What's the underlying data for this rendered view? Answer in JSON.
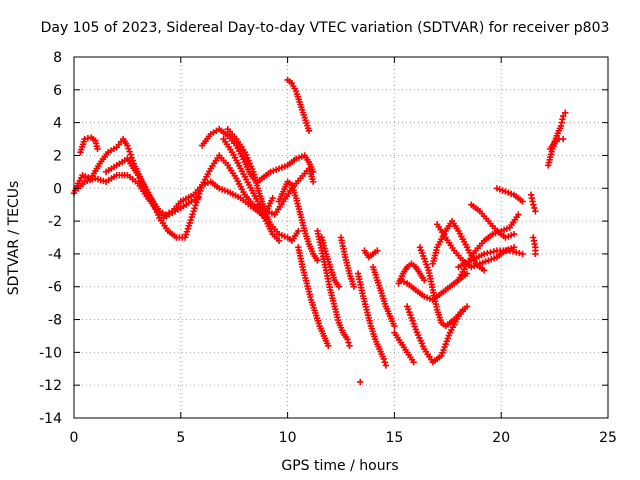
{
  "chart_data": {
    "type": "scatter",
    "title": "Day 105 of 2023, Sidereal Day-to-day VTEC variation (SDTVAR) for receiver p803",
    "xlabel": "GPS time / hours",
    "ylabel": "SDTVAR / TECUs",
    "xlim": [
      0,
      25
    ],
    "ylim": [
      -14,
      8
    ],
    "xticks": [
      0,
      5,
      10,
      15,
      20,
      25
    ],
    "yticks": [
      -14,
      -12,
      -10,
      -8,
      -6,
      -4,
      -2,
      0,
      2,
      4,
      6,
      8
    ],
    "grid": true,
    "marker": "+",
    "color": "#ff0000",
    "series": [
      {
        "points": [
          [
            0.0,
            -0.3
          ],
          [
            0.2,
            0.3
          ],
          [
            0.4,
            0.8
          ],
          [
            0.8,
            0.6
          ],
          [
            1.2,
            1.5
          ],
          [
            1.6,
            2.2
          ],
          [
            2.0,
            2.5
          ],
          [
            2.3,
            3.0
          ],
          [
            2.5,
            2.6
          ],
          [
            2.8,
            1.5
          ],
          [
            3.2,
            0.4
          ],
          [
            3.6,
            -0.6
          ],
          [
            4.0,
            -1.8
          ],
          [
            4.4,
            -2.6
          ],
          [
            4.8,
            -3.0
          ],
          [
            5.2,
            -3.0
          ],
          [
            5.6,
            -1.4
          ],
          [
            6.0,
            0.2
          ],
          [
            6.4,
            1.2
          ],
          [
            6.8,
            2.0
          ],
          [
            7.2,
            1.4
          ],
          [
            7.6,
            0.6
          ],
          [
            8.0,
            -0.4
          ],
          [
            8.5,
            -1.2
          ],
          [
            9.0,
            -1.4
          ],
          [
            9.3,
            -0.6
          ]
        ]
      },
      {
        "points": [
          [
            0.2,
            0.0
          ],
          [
            0.5,
            0.4
          ],
          [
            1.0,
            0.6
          ],
          [
            1.5,
            0.4
          ],
          [
            2.0,
            0.8
          ],
          [
            2.5,
            0.8
          ],
          [
            3.0,
            0.3
          ],
          [
            3.4,
            -0.5
          ],
          [
            3.8,
            -1.2
          ],
          [
            4.2,
            -1.8
          ],
          [
            4.6,
            -1.5
          ],
          [
            5.0,
            -1.2
          ],
          [
            5.5,
            -0.8
          ],
          [
            5.8,
            -0.6
          ]
        ]
      },
      {
        "points": [
          [
            0.3,
            2.2
          ],
          [
            0.5,
            3.0
          ],
          [
            0.8,
            3.1
          ],
          [
            1.0,
            2.9
          ],
          [
            1.1,
            2.4
          ]
        ]
      },
      {
        "points": [
          [
            1.5,
            1.0
          ],
          [
            2.0,
            1.4
          ],
          [
            2.5,
            1.8
          ],
          [
            3.0,
            0.8
          ],
          [
            3.5,
            -0.4
          ],
          [
            4.0,
            -1.4
          ],
          [
            4.3,
            -1.6
          ],
          [
            4.6,
            -1.4
          ],
          [
            5.0,
            -0.8
          ],
          [
            5.6,
            -0.4
          ],
          [
            6.0,
            0.2
          ],
          [
            6.4,
            0.4
          ],
          [
            6.8,
            0.0
          ],
          [
            7.2,
            -0.2
          ],
          [
            7.8,
            -0.6
          ],
          [
            8.4,
            -1.2
          ],
          [
            8.8,
            -1.6
          ],
          [
            9.0,
            -1.8
          ]
        ]
      },
      {
        "points": [
          [
            6.0,
            2.6
          ],
          [
            6.4,
            3.3
          ],
          [
            6.8,
            3.6
          ],
          [
            7.2,
            3.2
          ],
          [
            7.6,
            2.6
          ],
          [
            8.0,
            1.6
          ],
          [
            8.2,
            1.0
          ],
          [
            8.4,
            0.6
          ],
          [
            8.6,
            0.4
          ],
          [
            8.8,
            0.6
          ],
          [
            9.2,
            1.0
          ],
          [
            9.6,
            1.2
          ],
          [
            10.0,
            1.4
          ],
          [
            10.4,
            1.8
          ],
          [
            10.8,
            2.0
          ],
          [
            11.0,
            1.6
          ],
          [
            11.2,
            1.0
          ]
        ]
      },
      {
        "points": [
          [
            7.0,
            3.0
          ],
          [
            7.4,
            2.2
          ],
          [
            7.8,
            1.2
          ],
          [
            8.2,
            0.2
          ],
          [
            8.6,
            -0.8
          ],
          [
            9.0,
            -1.4
          ],
          [
            9.4,
            -1.6
          ],
          [
            9.8,
            -0.8
          ],
          [
            10.2,
            0.0
          ],
          [
            10.6,
            0.6
          ],
          [
            11.0,
            1.2
          ],
          [
            11.2,
            0.4
          ]
        ]
      },
      {
        "points": [
          [
            7.2,
            3.6
          ],
          [
            7.6,
            3.0
          ],
          [
            8.0,
            2.2
          ],
          [
            8.4,
            1.0
          ],
          [
            8.6,
            0.0
          ],
          [
            8.8,
            -0.8
          ],
          [
            9.0,
            -1.6
          ],
          [
            9.2,
            -2.2
          ],
          [
            9.6,
            -2.8
          ],
          [
            10.0,
            -3.0
          ],
          [
            10.2,
            -3.2
          ],
          [
            10.5,
            -2.6
          ]
        ]
      },
      {
        "points": [
          [
            8.6,
            -1.0
          ],
          [
            9.0,
            -2.0
          ],
          [
            9.3,
            -2.8
          ],
          [
            9.6,
            -3.2
          ]
        ]
      },
      {
        "points": [
          [
            9.6,
            -0.8
          ],
          [
            9.8,
            -0.2
          ],
          [
            10.0,
            0.4
          ],
          [
            10.2,
            0.2
          ],
          [
            10.4,
            -0.6
          ],
          [
            10.6,
            -1.6
          ],
          [
            10.8,
            -2.6
          ],
          [
            11.0,
            -3.4
          ],
          [
            11.2,
            -4.0
          ],
          [
            11.4,
            -4.4
          ]
        ]
      },
      {
        "points": [
          [
            10.0,
            6.6
          ],
          [
            10.2,
            6.4
          ],
          [
            10.4,
            5.9
          ],
          [
            10.6,
            5.1
          ],
          [
            10.8,
            4.3
          ],
          [
            11.0,
            3.5
          ]
        ]
      },
      {
        "points": [
          [
            10.5,
            -3.6
          ],
          [
            10.7,
            -4.8
          ],
          [
            10.9,
            -5.8
          ],
          [
            11.1,
            -6.8
          ],
          [
            11.3,
            -7.6
          ],
          [
            11.5,
            -8.4
          ],
          [
            11.7,
            -9.0
          ],
          [
            11.9,
            -9.6
          ]
        ]
      },
      {
        "points": [
          [
            11.4,
            -2.6
          ],
          [
            11.6,
            -3.8
          ],
          [
            11.8,
            -5.0
          ],
          [
            12.0,
            -6.2
          ],
          [
            12.2,
            -7.2
          ],
          [
            12.4,
            -8.2
          ],
          [
            12.6,
            -8.8
          ],
          [
            12.8,
            -9.2
          ],
          [
            12.9,
            -9.6
          ]
        ]
      },
      {
        "points": [
          [
            11.6,
            -3.0
          ],
          [
            11.8,
            -4.0
          ],
          [
            12.0,
            -4.8
          ],
          [
            12.2,
            -5.6
          ],
          [
            12.4,
            -6.0
          ]
        ]
      },
      {
        "points": [
          [
            12.5,
            -3.0
          ],
          [
            12.7,
            -4.2
          ],
          [
            12.9,
            -5.2
          ],
          [
            13.1,
            -6.0
          ]
        ]
      },
      {
        "points": [
          [
            13.3,
            -5.2
          ],
          [
            13.5,
            -6.4
          ],
          [
            13.7,
            -7.4
          ],
          [
            13.9,
            -8.4
          ],
          [
            14.1,
            -9.2
          ],
          [
            14.3,
            -9.8
          ],
          [
            14.5,
            -10.4
          ],
          [
            14.6,
            -10.8
          ]
        ]
      },
      {
        "points": [
          [
            14.0,
            -4.8
          ],
          [
            14.2,
            -5.6
          ],
          [
            14.4,
            -6.4
          ],
          [
            14.6,
            -7.2
          ],
          [
            14.8,
            -7.8
          ],
          [
            15.0,
            -8.4
          ]
        ]
      },
      {
        "points": [
          [
            13.4,
            -11.8
          ]
        ]
      },
      {
        "points": [
          [
            13.6,
            -3.8
          ],
          [
            13.8,
            -4.2
          ],
          [
            14.0,
            -4.0
          ],
          [
            14.2,
            -3.8
          ]
        ]
      },
      {
        "points": [
          [
            15.0,
            -8.8
          ],
          [
            15.3,
            -9.4
          ],
          [
            15.6,
            -10.0
          ],
          [
            15.9,
            -10.6
          ]
        ]
      },
      {
        "points": [
          [
            15.2,
            -5.8
          ],
          [
            15.4,
            -5.2
          ],
          [
            15.6,
            -4.8
          ],
          [
            15.8,
            -4.6
          ],
          [
            16.0,
            -4.8
          ],
          [
            16.2,
            -5.2
          ],
          [
            16.4,
            -5.6
          ]
        ]
      },
      {
        "points": [
          [
            15.3,
            -5.6
          ],
          [
            15.6,
            -5.8
          ],
          [
            16.0,
            -6.2
          ],
          [
            16.4,
            -6.6
          ],
          [
            16.8,
            -6.8
          ],
          [
            17.2,
            -6.4
          ],
          [
            17.6,
            -6.0
          ],
          [
            18.0,
            -5.6
          ],
          [
            18.4,
            -5.2
          ]
        ]
      },
      {
        "points": [
          [
            15.6,
            -7.2
          ],
          [
            16.0,
            -8.6
          ],
          [
            16.4,
            -9.8
          ],
          [
            16.8,
            -10.6
          ],
          [
            17.2,
            -10.2
          ],
          [
            17.6,
            -8.8
          ],
          [
            18.0,
            -7.8
          ],
          [
            18.4,
            -7.2
          ]
        ]
      },
      {
        "points": [
          [
            16.2,
            -3.6
          ],
          [
            16.6,
            -5.0
          ],
          [
            16.8,
            -6.2
          ],
          [
            17.0,
            -7.4
          ],
          [
            17.2,
            -8.2
          ],
          [
            17.4,
            -8.4
          ],
          [
            17.8,
            -8.0
          ],
          [
            18.2,
            -7.4
          ]
        ]
      },
      {
        "points": [
          [
            16.8,
            -4.6
          ],
          [
            17.0,
            -3.6
          ],
          [
            17.4,
            -2.6
          ],
          [
            17.7,
            -2.0
          ],
          [
            18.0,
            -2.6
          ],
          [
            18.4,
            -3.6
          ],
          [
            18.8,
            -4.6
          ],
          [
            19.2,
            -5.0
          ]
        ]
      },
      {
        "points": [
          [
            17.0,
            -2.2
          ],
          [
            17.4,
            -3.0
          ],
          [
            17.8,
            -3.8
          ],
          [
            18.2,
            -4.4
          ],
          [
            18.6,
            -4.8
          ],
          [
            19.0,
            -4.6
          ],
          [
            19.4,
            -4.4
          ],
          [
            19.8,
            -4.2
          ],
          [
            20.2,
            -3.8
          ],
          [
            20.6,
            -3.6
          ]
        ]
      },
      {
        "points": [
          [
            18.0,
            -5.6
          ],
          [
            18.4,
            -4.6
          ],
          [
            18.8,
            -3.8
          ],
          [
            19.2,
            -3.2
          ],
          [
            19.6,
            -2.8
          ],
          [
            20.0,
            -2.6
          ],
          [
            20.4,
            -2.4
          ],
          [
            20.8,
            -1.6
          ]
        ]
      },
      {
        "points": [
          [
            18.6,
            -1.0
          ],
          [
            19.0,
            -1.4
          ],
          [
            19.4,
            -2.0
          ],
          [
            19.8,
            -2.6
          ],
          [
            20.2,
            -3.0
          ],
          [
            20.6,
            -2.8
          ]
        ]
      },
      {
        "points": [
          [
            19.8,
            0.0
          ],
          [
            20.2,
            -0.2
          ],
          [
            20.6,
            -0.4
          ],
          [
            21.0,
            -0.8
          ]
        ]
      },
      {
        "points": [
          [
            18.0,
            -4.8
          ],
          [
            18.6,
            -4.4
          ],
          [
            19.2,
            -4.0
          ],
          [
            19.8,
            -3.8
          ],
          [
            20.4,
            -3.8
          ],
          [
            21.0,
            -4.0
          ]
        ]
      },
      {
        "points": [
          [
            21.4,
            -0.4
          ],
          [
            21.5,
            -1.0
          ],
          [
            21.6,
            -1.4
          ]
        ]
      },
      {
        "points": [
          [
            21.5,
            -3.0
          ],
          [
            21.6,
            -3.6
          ],
          [
            21.6,
            -4.0
          ]
        ]
      },
      {
        "points": [
          [
            22.2,
            1.4
          ],
          [
            22.4,
            2.4
          ],
          [
            22.6,
            3.2
          ],
          [
            22.8,
            3.8
          ],
          [
            22.9,
            4.4
          ],
          [
            23.0,
            4.6
          ]
        ]
      },
      {
        "points": [
          [
            22.3,
            2.4
          ],
          [
            22.5,
            2.8
          ],
          [
            22.7,
            3.0
          ],
          [
            22.9,
            3.0
          ]
        ]
      }
    ]
  }
}
